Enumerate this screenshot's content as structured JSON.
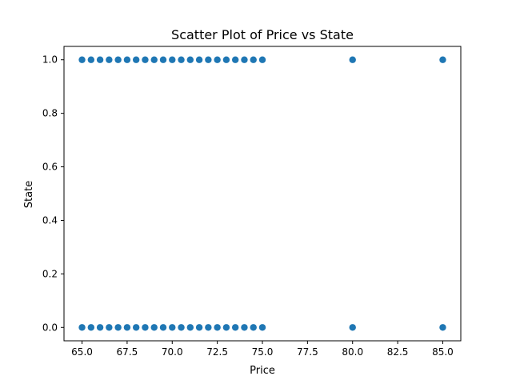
{
  "chart_data": {
    "type": "scatter",
    "title": "Scatter Plot of Price vs State",
    "xlabel": "Price",
    "ylabel": "State",
    "xlim": [
      64.0,
      86.0
    ],
    "ylim": [
      -0.05,
      1.05
    ],
    "grid": false,
    "x_ticks": [
      "65.0",
      "67.5",
      "70.0",
      "72.5",
      "75.0",
      "77.5",
      "80.0",
      "82.5",
      "85.0"
    ],
    "x_tick_values": [
      65.0,
      67.5,
      70.0,
      72.5,
      75.0,
      77.5,
      80.0,
      82.5,
      85.0
    ],
    "y_ticks": [
      "0.0",
      "0.2",
      "0.4",
      "0.6",
      "0.8",
      "1.0"
    ],
    "y_tick_values": [
      0.0,
      0.2,
      0.4,
      0.6,
      0.8,
      1.0
    ],
    "marker_color": "#1f77b4",
    "series": [
      {
        "x": [
          65.0,
          65.5,
          66.0,
          66.5,
          67.0,
          67.5,
          68.0,
          68.5,
          69.0,
          69.5,
          70.0,
          70.5,
          71.0,
          71.5,
          72.0,
          72.5,
          73.0,
          73.5,
          74.0,
          74.5,
          75.0,
          80.0,
          85.0,
          65.0,
          65.5,
          66.0,
          66.5,
          67.0,
          67.5,
          68.0,
          68.5,
          69.0,
          69.5,
          70.0,
          70.5,
          71.0,
          71.5,
          72.0,
          72.5,
          73.0,
          73.5,
          74.0,
          74.5,
          75.0,
          80.0,
          85.0
        ],
        "y": [
          1,
          1,
          1,
          1,
          1,
          1,
          1,
          1,
          1,
          1,
          1,
          1,
          1,
          1,
          1,
          1,
          1,
          1,
          1,
          1,
          1,
          1,
          1,
          0,
          0,
          0,
          0,
          0,
          0,
          0,
          0,
          0,
          0,
          0,
          0,
          0,
          0,
          0,
          0,
          0,
          0,
          0,
          0,
          0,
          0,
          0
        ]
      }
    ]
  }
}
